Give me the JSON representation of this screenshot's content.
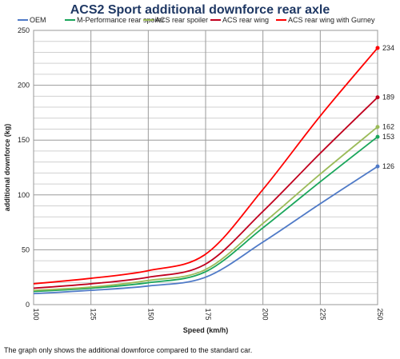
{
  "chart_data": {
    "type": "line",
    "title": "ACS2 Sport additional downforce rear axle",
    "xlabel": "Speed (km/h)",
    "ylabel": "additional downforce (kg)",
    "xlim": [
      100,
      250
    ],
    "ylim": [
      0,
      250
    ],
    "x_ticks": [
      100,
      125,
      150,
      175,
      200,
      225,
      250
    ],
    "y_ticks": [
      0,
      50,
      100,
      150,
      200,
      250
    ],
    "grid": true,
    "legend": "top",
    "x": [
      100,
      125,
      150,
      175,
      200,
      225,
      250
    ],
    "series": [
      {
        "name": "OEM",
        "color": "#4f7ac7",
        "values": [
          10,
          13,
          17,
          25,
          57,
          92,
          126
        ],
        "end_label": "126"
      },
      {
        "name": "M-Performance rear spoiler",
        "color": "#1aa65b",
        "values": [
          12,
          15,
          20,
          30,
          70,
          112,
          153
        ],
        "end_label": "153"
      },
      {
        "name": "ACS rear spoiler",
        "color": "#9bbb59",
        "values": [
          13,
          16,
          22,
          32,
          74,
          119,
          162
        ],
        "end_label": "162"
      },
      {
        "name": "ACS rear wing",
        "color": "#c0001e",
        "values": [
          15,
          19,
          25,
          37,
          85,
          138,
          189
        ],
        "end_label": "189"
      },
      {
        "name": "ACS rear wing with Gurney",
        "color": "#ff0000",
        "values": [
          19,
          24,
          31,
          46,
          105,
          172,
          234
        ],
        "end_label": "234"
      }
    ]
  },
  "footnote": "The graph only shows the additional downforce compared to the standard car."
}
